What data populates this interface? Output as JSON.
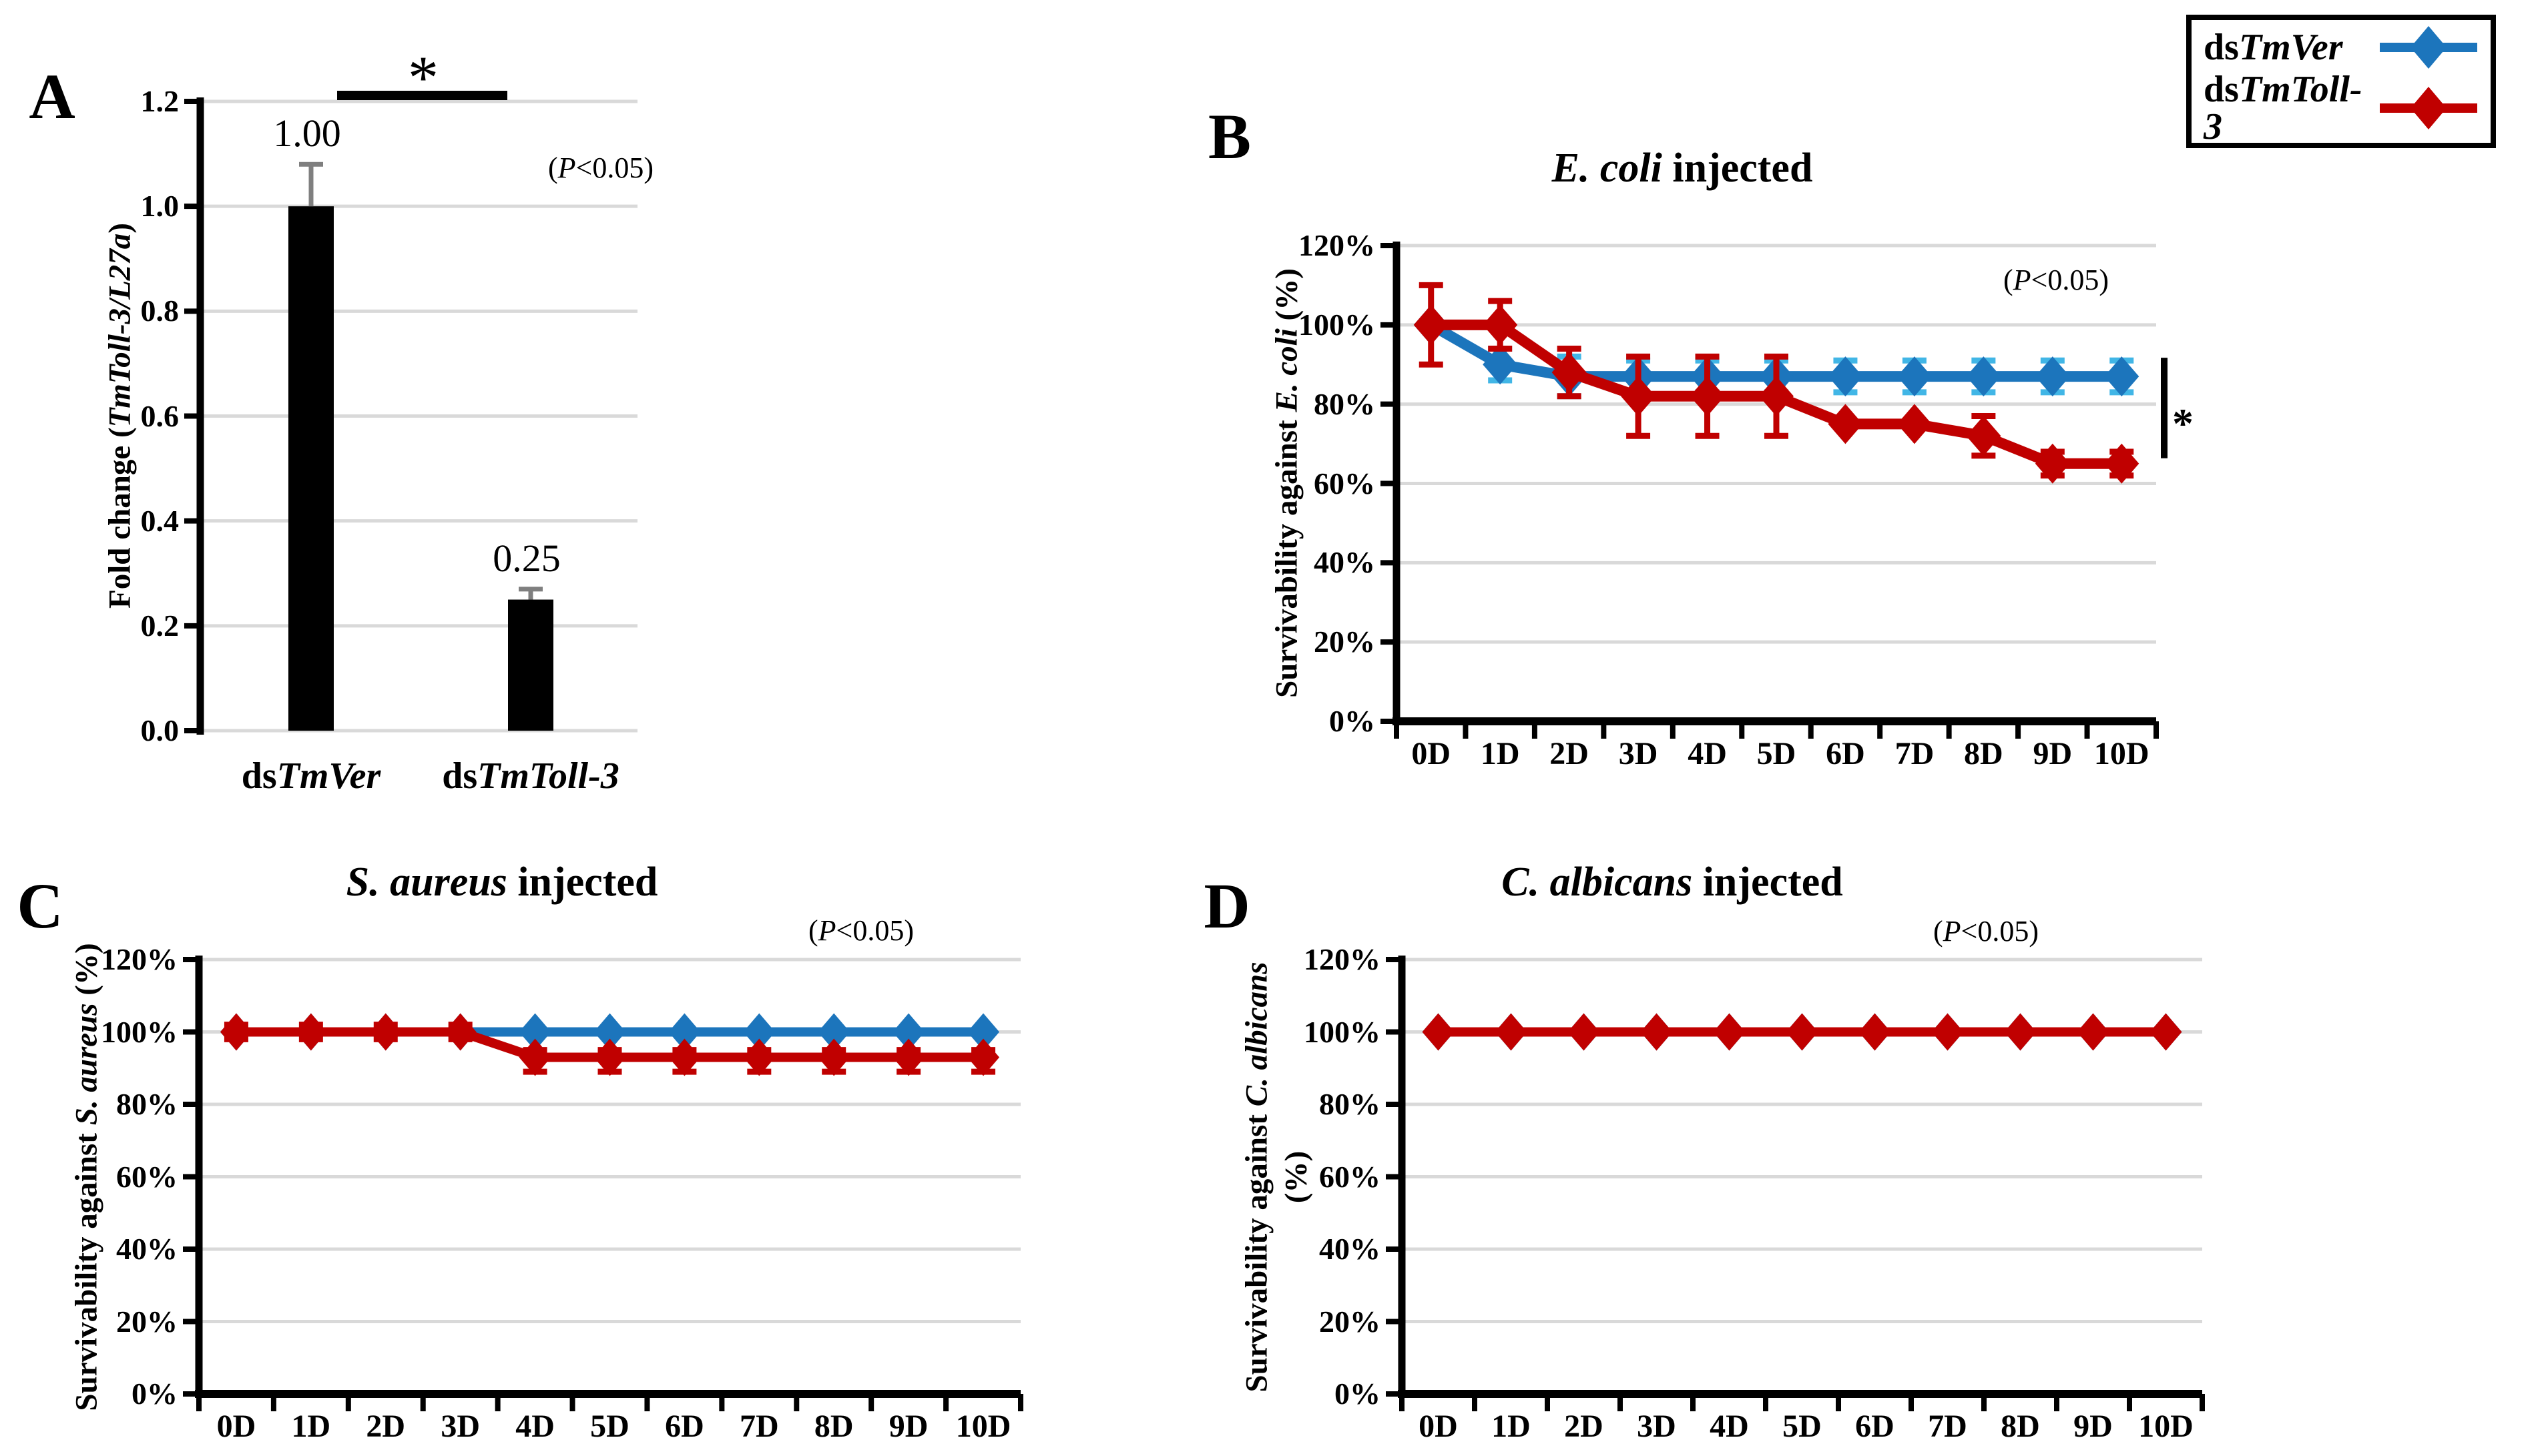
{
  "legend": {
    "items": [
      {
        "name": "dsTmVer",
        "label_segments": [
          {
            "t": "ds",
            "i": false
          },
          {
            "t": "TmVer",
            "i": true
          }
        ],
        "color": "#1C75BC",
        "error_color": "#41B6E6",
        "marker": "diamond"
      },
      {
        "name": "dsTmToll-3",
        "label_segments": [
          {
            "t": "ds",
            "i": false
          },
          {
            "t": "TmToll-3",
            "i": true
          }
        ],
        "color": "#C00000",
        "error_color": "#C00000",
        "marker": "diamond"
      }
    ]
  },
  "chart_data": [
    {
      "id": "a",
      "type": "bar",
      "panel_letter": "A",
      "ylabel_segments": [
        {
          "t": "Fold change (",
          "i": false
        },
        {
          "t": "TmToll-3/L27a",
          "i": true
        },
        {
          "t": ")",
          "i": false
        }
      ],
      "categories_segments": [
        [
          {
            "t": "ds",
            "i": false
          },
          {
            "t": "TmVer",
            "i": true
          }
        ],
        [
          {
            "t": "ds",
            "i": false
          },
          {
            "t": "TmToll-3",
            "i": true
          }
        ]
      ],
      "values": [
        1.0,
        0.25
      ],
      "errors": [
        0.08,
        0.02
      ],
      "data_labels": [
        "1.00",
        "0.25"
      ],
      "bar_color": "#000000",
      "error_color": "#7F7F7F",
      "ylim": [
        0,
        1.2
      ],
      "ytick_labels": [
        "0.0",
        "0.2",
        "0.4",
        "0.6",
        "0.8",
        "1.0",
        "1.2"
      ],
      "grid": true,
      "significance": {
        "asterisk": "*"
      },
      "p_annotation": [
        {
          "t": "(",
          "i": false
        },
        {
          "t": "P",
          "i": true
        },
        {
          "t": "<0.05)",
          "i": false
        }
      ]
    },
    {
      "id": "b",
      "type": "line",
      "panel_letter": "B",
      "title_segments": [
        {
          "t": "E. coli",
          "i": true
        },
        {
          "t": " injected",
          "i": false
        }
      ],
      "ylabel_lines": [
        [
          {
            "t": "Survivability against ",
            "i": false
          },
          {
            "t": "E. coli",
            "i": true
          },
          {
            "t": " (%)",
            "i": false
          }
        ]
      ],
      "categories": [
        "0D",
        "1D",
        "2D",
        "3D",
        "4D",
        "5D",
        "6D",
        "7D",
        "8D",
        "9D",
        "10D"
      ],
      "ylim": [
        0,
        120
      ],
      "ytick_labels": [
        "0%",
        "20%",
        "40%",
        "60%",
        "80%",
        "100%",
        "120%"
      ],
      "grid": true,
      "legend_position": "top-right-outside",
      "series": [
        {
          "name": "dsTmVer",
          "color": "#1C75BC",
          "error_color": "#41B6E6",
          "marker": "diamond",
          "values": [
            100,
            90,
            87,
            87,
            87,
            87,
            87,
            87,
            87,
            87,
            87
          ],
          "err_up": [
            0,
            4,
            5,
            4,
            4,
            4,
            4,
            4,
            4,
            4,
            4
          ],
          "err_down": [
            0,
            4,
            5,
            4,
            4,
            4,
            4,
            4,
            4,
            4,
            4
          ]
        },
        {
          "name": "dsTmToll-3",
          "color": "#C00000",
          "error_color": "#C00000",
          "marker": "diamond",
          "values": [
            100,
            100,
            88,
            82,
            82,
            82,
            75,
            75,
            72,
            65,
            65
          ],
          "err_up": [
            10,
            6,
            6,
            10,
            10,
            10,
            0,
            0,
            5,
            3,
            3
          ],
          "err_down": [
            10,
            6,
            6,
            10,
            10,
            10,
            0,
            0,
            5,
            3,
            3
          ]
        }
      ],
      "sig_bracket": {
        "label": "*"
      },
      "p_annotation": [
        {
          "t": "(",
          "i": false
        },
        {
          "t": "P",
          "i": true
        },
        {
          "t": "<0.05)",
          "i": false
        }
      ]
    },
    {
      "id": "c",
      "type": "line",
      "panel_letter": "C",
      "title_segments": [
        {
          "t": "S. aureus",
          "i": true
        },
        {
          "t": " injected",
          "i": false
        }
      ],
      "ylabel_lines": [
        [
          {
            "t": "Survivability against ",
            "i": false
          },
          {
            "t": "S. aureus",
            "i": true
          },
          {
            "t": " (%)",
            "i": false
          }
        ]
      ],
      "categories": [
        "0D",
        "1D",
        "2D",
        "3D",
        "4D",
        "5D",
        "6D",
        "7D",
        "8D",
        "9D",
        "10D"
      ],
      "ylim": [
        0,
        120
      ],
      "ytick_labels": [
        "0%",
        "20%",
        "40%",
        "60%",
        "80%",
        "100%",
        "120%"
      ],
      "grid": true,
      "series": [
        {
          "name": "dsTmVer",
          "color": "#1C75BC",
          "error_color": "#41B6E6",
          "marker": "diamond",
          "values": [
            100,
            100,
            100,
            100,
            100,
            100,
            100,
            100,
            100,
            100,
            100
          ],
          "err_up": [
            0,
            0,
            0,
            0,
            0,
            0,
            0,
            0,
            0,
            0,
            0
          ],
          "err_down": [
            0,
            0,
            0,
            0,
            0,
            0,
            0,
            0,
            0,
            0,
            0
          ]
        },
        {
          "name": "dsTmToll-3",
          "color": "#C00000",
          "error_color": "#C00000",
          "marker": "diamond",
          "values": [
            100,
            100,
            100,
            100,
            93,
            93,
            93,
            93,
            93,
            93,
            93
          ],
          "err_up": [
            2,
            2,
            2,
            2,
            2,
            2,
            2,
            2,
            2,
            2,
            2
          ],
          "err_down": [
            2,
            2,
            2,
            2,
            4,
            4,
            4,
            4,
            4,
            4,
            4
          ]
        }
      ],
      "p_annotation": [
        {
          "t": "(",
          "i": false
        },
        {
          "t": "P",
          "i": true
        },
        {
          "t": "<0.05)",
          "i": false
        }
      ]
    },
    {
      "id": "d",
      "type": "line",
      "panel_letter": "D",
      "title_segments": [
        {
          "t": "C. albicans",
          "i": true
        },
        {
          "t": " injected",
          "i": false
        }
      ],
      "ylabel_lines": [
        [
          {
            "t": "Survivability against ",
            "i": false
          },
          {
            "t": "C. albicans",
            "i": true
          }
        ],
        [
          {
            "t": "(%)",
            "i": false
          }
        ]
      ],
      "categories": [
        "0D",
        "1D",
        "2D",
        "3D",
        "4D",
        "5D",
        "6D",
        "7D",
        "8D",
        "9D",
        "10D"
      ],
      "ylim": [
        0,
        120
      ],
      "ytick_labels": [
        "0%",
        "20%",
        "40%",
        "60%",
        "80%",
        "100%",
        "120%"
      ],
      "grid": true,
      "series": [
        {
          "name": "dsTmVer",
          "color": "#1C75BC",
          "error_color": "#41B6E6",
          "marker": "diamond",
          "values": [
            100,
            100,
            100,
            100,
            100,
            100,
            100,
            100,
            100,
            100,
            100
          ],
          "err_up": [
            0,
            0,
            0,
            0,
            0,
            0,
            0,
            0,
            0,
            0,
            0
          ],
          "err_down": [
            0,
            0,
            0,
            0,
            0,
            0,
            0,
            0,
            0,
            0,
            0
          ]
        },
        {
          "name": "dsTmToll-3",
          "color": "#C00000",
          "error_color": "#C00000",
          "marker": "diamond",
          "values": [
            100,
            100,
            100,
            100,
            100,
            100,
            100,
            100,
            100,
            100,
            100
          ],
          "err_up": [
            0,
            0,
            0,
            0,
            0,
            0,
            0,
            0,
            0,
            0,
            0
          ],
          "err_down": [
            0,
            0,
            0,
            0,
            0,
            0,
            0,
            0,
            0,
            0,
            0
          ]
        }
      ],
      "p_annotation": [
        {
          "t": "(",
          "i": false
        },
        {
          "t": "P",
          "i": true
        },
        {
          "t": "<0.05)",
          "i": false
        }
      ]
    }
  ]
}
